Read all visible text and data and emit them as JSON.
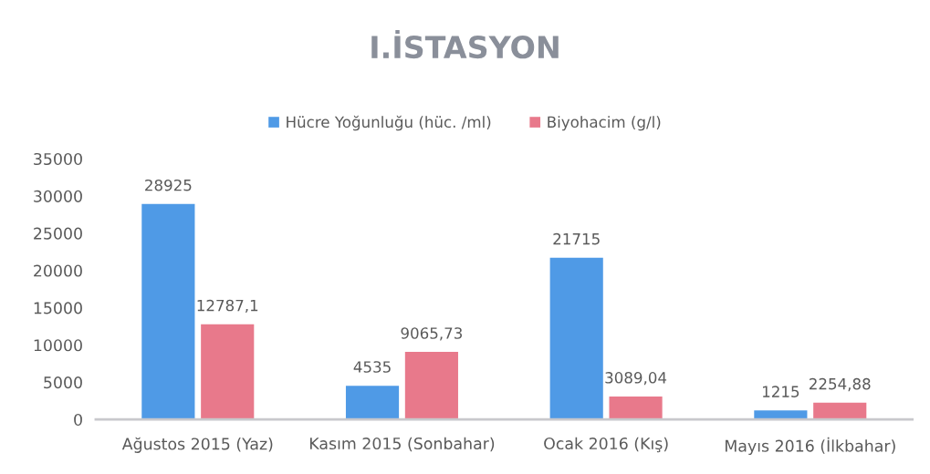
{
  "chart_data": {
    "type": "bar",
    "title": "I.İSTASYON",
    "categories": [
      "Ağustos 2015 (Yaz)",
      "Kasım 2015 (Sonbahar)",
      "Ocak 2016 (Kış)",
      "Mayıs 2016 (İlkbahar)"
    ],
    "series": [
      {
        "name": "Hücre Yoğunluğu (hüc. /ml)",
        "color": "#4f9ae6",
        "values": [
          28925,
          4535,
          21715,
          1215
        ],
        "value_labels": [
          "28925",
          "4535",
          "21715",
          "1215"
        ]
      },
      {
        "name": "Biyohacim (g/l)",
        "color": "#e8798b",
        "values": [
          12787.1,
          9065.73,
          3089.04,
          2254.88
        ],
        "value_labels": [
          "12787,1",
          "9065,73",
          "3089,04",
          "2254,88"
        ]
      }
    ],
    "ylim": [
      0,
      35000
    ],
    "yticks": [
      0,
      5000,
      10000,
      15000,
      20000,
      25000,
      30000,
      35000
    ],
    "legend": "top"
  }
}
